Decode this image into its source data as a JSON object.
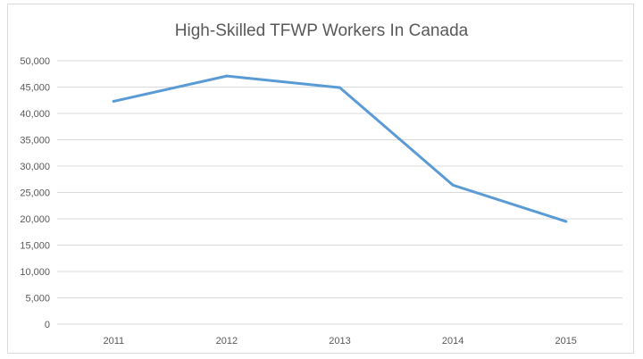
{
  "chart_data": {
    "type": "line",
    "title": "High-Skilled TFWP Workers In Canada",
    "xlabel": "",
    "ylabel": "",
    "categories": [
      "2011",
      "2012",
      "2013",
      "2014",
      "2015"
    ],
    "series": [
      {
        "values": [
          42300,
          47100,
          44900,
          26400,
          19500
        ],
        "color": "#5b9bd5"
      }
    ],
    "ylim": [
      0,
      50000
    ],
    "yticks": [
      0,
      5000,
      10000,
      15000,
      20000,
      25000,
      30000,
      35000,
      40000,
      45000,
      50000
    ],
    "ytick_labels": [
      "0",
      "5,000",
      "10,000",
      "15,000",
      "20,000",
      "25,000",
      "30,000",
      "35,000",
      "40,000",
      "45,000",
      "50,000"
    ],
    "grid": true,
    "legend": "none",
    "gridline_color": "#d9d9d9"
  }
}
